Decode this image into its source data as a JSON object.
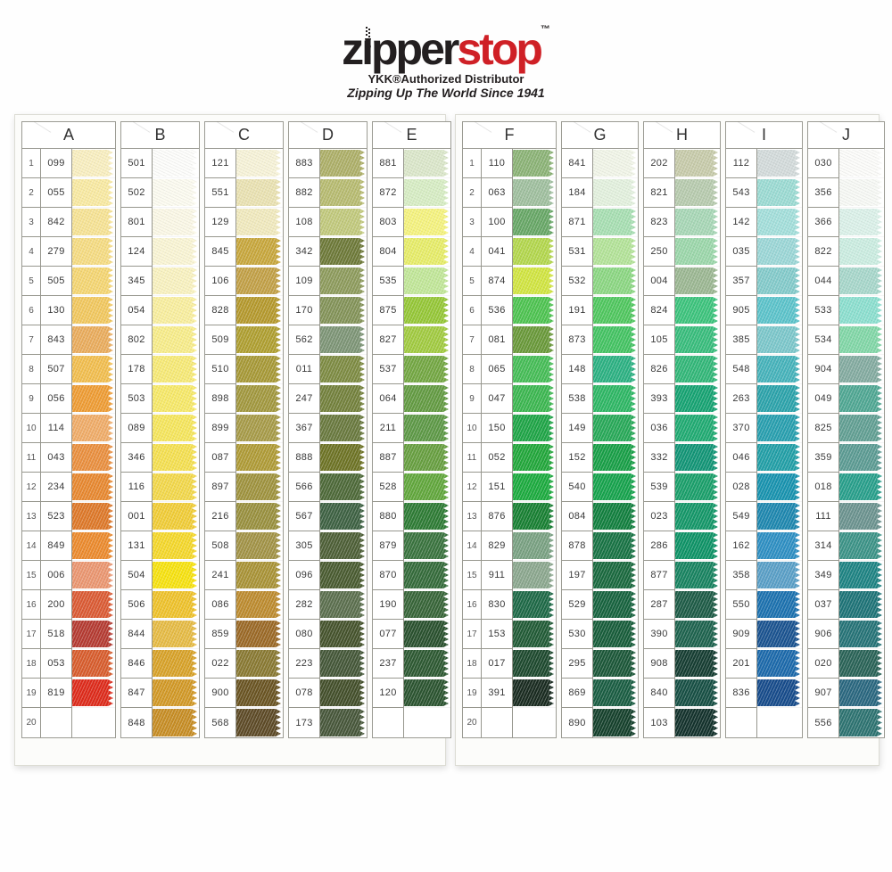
{
  "brand": {
    "logo_z": "z",
    "logo_i": "ı",
    "logo_pper": "pper",
    "logo_stop": "stop",
    "tm": "™",
    "subtitle": "YKK®Authorized Distributor",
    "tagline": "Zipping Up The World Since 1941",
    "red": "#cf2026",
    "black": "#231f20"
  },
  "rows": 20,
  "pages": [
    {
      "columns": [
        {
          "letter": "A",
          "show_row_numbers": true,
          "cells": [
            {
              "code": "099",
              "color": "#F9EFC0"
            },
            {
              "code": "055",
              "color": "#F9EAA2"
            },
            {
              "code": "842",
              "color": "#F7E394"
            },
            {
              "code": "279",
              "color": "#F6DC82"
            },
            {
              "code": "505",
              "color": "#F5D672"
            },
            {
              "code": "130",
              "color": "#F2C85E"
            },
            {
              "code": "843",
              "color": "#EAAC5C"
            },
            {
              "code": "507",
              "color": "#F2BE4E"
            },
            {
              "code": "056",
              "color": "#EF9C33"
            },
            {
              "code": "114",
              "color": "#F0AC68"
            },
            {
              "code": "043",
              "color": "#EA8F3E"
            },
            {
              "code": "234",
              "color": "#E8882F"
            },
            {
              "code": "523",
              "color": "#DE7828"
            },
            {
              "code": "849",
              "color": "#EC8A2C"
            },
            {
              "code": "006",
              "color": "#EB9670"
            },
            {
              "code": "200",
              "color": "#DB5A33"
            },
            {
              "code": "518",
              "color": "#B53A31"
            },
            {
              "code": "053",
              "color": "#D85C2C"
            },
            {
              "code": "819",
              "color": "#DE2A1A"
            },
            {
              "code": "",
              "color": ""
            }
          ]
        },
        {
          "letter": "B",
          "show_row_numbers": false,
          "cells": [
            {
              "code": "501",
              "color": "#FDFDFB"
            },
            {
              "code": "502",
              "color": "#FCFBF0"
            },
            {
              "code": "801",
              "color": "#FBF8E6"
            },
            {
              "code": "124",
              "color": "#FAF5D4"
            },
            {
              "code": "345",
              "color": "#F9F2C0"
            },
            {
              "code": "054",
              "color": "#F9EF9E"
            },
            {
              "code": "802",
              "color": "#F8ED8A"
            },
            {
              "code": "178",
              "color": "#F7EA76"
            },
            {
              "code": "503",
              "color": "#F7E968"
            },
            {
              "code": "089",
              "color": "#F6E65C"
            },
            {
              "code": "346",
              "color": "#F5E050"
            },
            {
              "code": "116",
              "color": "#F3D84A"
            },
            {
              "code": "001",
              "color": "#F1CD36"
            },
            {
              "code": "131",
              "color": "#F5D82A"
            },
            {
              "code": "504",
              "color": "#F7E20E"
            },
            {
              "code": "506",
              "color": "#EFC22A"
            },
            {
              "code": "844",
              "color": "#E6BB44"
            },
            {
              "code": "846",
              "color": "#D8A228"
            },
            {
              "code": "847",
              "color": "#D29926"
            },
            {
              "code": "848",
              "color": "#C78D24"
            }
          ]
        },
        {
          "letter": "C",
          "show_row_numbers": false,
          "cells": [
            {
              "code": "121",
              "color": "#F7F3D8"
            },
            {
              "code": "551",
              "color": "#EAE2B2"
            },
            {
              "code": "129",
              "color": "#F1EABE"
            },
            {
              "code": "845",
              "color": "#C8A73C"
            },
            {
              "code": "106",
              "color": "#C2A046"
            },
            {
              "code": "828",
              "color": "#B5992C"
            },
            {
              "code": "509",
              "color": "#AF9F30"
            },
            {
              "code": "510",
              "color": "#A79936"
            },
            {
              "code": "898",
              "color": "#A2983E"
            },
            {
              "code": "899",
              "color": "#A79B48"
            },
            {
              "code": "087",
              "color": "#AF9B36"
            },
            {
              "code": "897",
              "color": "#9F933E"
            },
            {
              "code": "216",
              "color": "#99903E"
            },
            {
              "code": "508",
              "color": "#A29346"
            },
            {
              "code": "241",
              "color": "#A99336"
            },
            {
              "code": "086",
              "color": "#BD8B2E"
            },
            {
              "code": "859",
              "color": "#9B6926"
            },
            {
              "code": "022",
              "color": "#897932"
            },
            {
              "code": "900",
              "color": "#6A5422"
            },
            {
              "code": "568",
              "color": "#5D4A26"
            }
          ]
        },
        {
          "letter": "D",
          "show_row_numbers": false,
          "cells": [
            {
              "code": "883",
              "color": "#ADAF68"
            },
            {
              "code": "882",
              "color": "#B7BB70"
            },
            {
              "code": "108",
              "color": "#C1C97C"
            },
            {
              "code": "342",
              "color": "#6D7938"
            },
            {
              "code": "109",
              "color": "#8D9B5C"
            },
            {
              "code": "170",
              "color": "#839358"
            },
            {
              "code": "562",
              "color": "#7D9576"
            },
            {
              "code": "011",
              "color": "#7D8B42"
            },
            {
              "code": "247",
              "color": "#73813C"
            },
            {
              "code": "367",
              "color": "#69793E"
            },
            {
              "code": "888",
              "color": "#6D7324"
            },
            {
              "code": "566",
              "color": "#4D6938"
            },
            {
              "code": "567",
              "color": "#3D6142"
            },
            {
              "code": "305",
              "color": "#4D5F36"
            },
            {
              "code": "096",
              "color": "#495B30"
            },
            {
              "code": "282",
              "color": "#5B6F4E"
            },
            {
              "code": "080",
              "color": "#45532C"
            },
            {
              "code": "223",
              "color": "#445738"
            },
            {
              "code": "078",
              "color": "#434F2A"
            },
            {
              "code": "173",
              "color": "#47573A"
            }
          ]
        },
        {
          "letter": "E",
          "show_row_numbers": false,
          "cells": [
            {
              "code": "881",
              "color": "#DBE7CA"
            },
            {
              "code": "872",
              "color": "#D7EDC4"
            },
            {
              "code": "803",
              "color": "#F5F37E"
            },
            {
              "code": "804",
              "color": "#E7ED68"
            },
            {
              "code": "535",
              "color": "#C1E798"
            },
            {
              "code": "875",
              "color": "#95C736"
            },
            {
              "code": "827",
              "color": "#A1CB40"
            },
            {
              "code": "537",
              "color": "#73A742"
            },
            {
              "code": "064",
              "color": "#639B42"
            },
            {
              "code": "211",
              "color": "#5D9946"
            },
            {
              "code": "887",
              "color": "#679F40"
            },
            {
              "code": "528",
              "color": "#61A73C"
            },
            {
              "code": "880",
              "color": "#2D7B34"
            },
            {
              "code": "879",
              "color": "#39733E"
            },
            {
              "code": "870",
              "color": "#346B3A"
            },
            {
              "code": "190",
              "color": "#376538"
            },
            {
              "code": "077",
              "color": "#29512E"
            },
            {
              "code": "237",
              "color": "#2D5932"
            },
            {
              "code": "120",
              "color": "#2B5430"
            },
            {
              "code": "",
              "color": ""
            }
          ]
        }
      ]
    },
    {
      "columns": [
        {
          "letter": "F",
          "show_row_numbers": true,
          "cells": [
            {
              "code": "110",
              "color": "#8BB376"
            },
            {
              "code": "063",
              "color": "#9FBF9E"
            },
            {
              "code": "100",
              "color": "#67A766"
            },
            {
              "code": "041",
              "color": "#B3D74C"
            },
            {
              "code": "874",
              "color": "#D1E540"
            },
            {
              "code": "536",
              "color": "#4DC350"
            },
            {
              "code": "081",
              "color": "#699939"
            },
            {
              "code": "065",
              "color": "#45BD56"
            },
            {
              "code": "047",
              "color": "#3BB750"
            },
            {
              "code": "150",
              "color": "#1EA546"
            },
            {
              "code": "052",
              "color": "#21A73A"
            },
            {
              "code": "151",
              "color": "#1BAB3E"
            },
            {
              "code": "876",
              "color": "#178032"
            },
            {
              "code": "829",
              "color": "#79A182"
            },
            {
              "code": "911",
              "color": "#8BA78E"
            },
            {
              "code": "830",
              "color": "#1D6946"
            },
            {
              "code": "153",
              "color": "#215B36"
            },
            {
              "code": "017",
              "color": "#1D492E"
            },
            {
              "code": "391",
              "color": "#192B20"
            },
            {
              "code": "",
              "color": ""
            }
          ]
        },
        {
          "letter": "G",
          "show_row_numbers": false,
          "cells": [
            {
              "code": "841",
              "color": "#F1F5E8"
            },
            {
              "code": "184",
              "color": "#E3F1DE"
            },
            {
              "code": "871",
              "color": "#A7DFB2"
            },
            {
              "code": "531",
              "color": "#B3E398"
            },
            {
              "code": "532",
              "color": "#8BD782"
            },
            {
              "code": "191",
              "color": "#4FC75E"
            },
            {
              "code": "873",
              "color": "#43C362"
            },
            {
              "code": "148",
              "color": "#2BB182"
            },
            {
              "code": "538",
              "color": "#2DB764"
            },
            {
              "code": "149",
              "color": "#27A958"
            },
            {
              "code": "152",
              "color": "#179F46"
            },
            {
              "code": "540",
              "color": "#15A34C"
            },
            {
              "code": "084",
              "color": "#117F3E"
            },
            {
              "code": "878",
              "color": "#177344"
            },
            {
              "code": "197",
              "color": "#19693E"
            },
            {
              "code": "529",
              "color": "#16633E"
            },
            {
              "code": "530",
              "color": "#175D3A"
            },
            {
              "code": "295",
              "color": "#1B5738"
            },
            {
              "code": "869",
              "color": "#195D42"
            },
            {
              "code": "890",
              "color": "#15412C"
            }
          ]
        },
        {
          "letter": "H",
          "show_row_numbers": false,
          "cells": [
            {
              "code": "202",
              "color": "#C7CBAA"
            },
            {
              "code": "821",
              "color": "#B7CBAE"
            },
            {
              "code": "823",
              "color": "#A7D7B6"
            },
            {
              "code": "250",
              "color": "#9BD7AA"
            },
            {
              "code": "004",
              "color": "#9BB792"
            },
            {
              "code": "824",
              "color": "#3BC37C"
            },
            {
              "code": "105",
              "color": "#37BD7C"
            },
            {
              "code": "826",
              "color": "#31B778"
            },
            {
              "code": "393",
              "color": "#15A372"
            },
            {
              "code": "036",
              "color": "#1FAB72"
            },
            {
              "code": "332",
              "color": "#119576"
            },
            {
              "code": "539",
              "color": "#199F6A"
            },
            {
              "code": "023",
              "color": "#139768"
            },
            {
              "code": "286",
              "color": "#0D9366"
            },
            {
              "code": "877",
              "color": "#178360"
            },
            {
              "code": "287",
              "color": "#1D5B46"
            },
            {
              "code": "390",
              "color": "#1D634E"
            },
            {
              "code": "908",
              "color": "#153D32"
            },
            {
              "code": "840",
              "color": "#164F44"
            },
            {
              "code": "103",
              "color": "#13322C"
            }
          ]
        },
        {
          "letter": "I",
          "show_row_numbers": false,
          "cells": [
            {
              "code": "112",
              "color": "#D3DBDB"
            },
            {
              "code": "543",
              "color": "#9BDBD3"
            },
            {
              "code": "142",
              "color": "#A3DFDB"
            },
            {
              "code": "035",
              "color": "#9BD7D7"
            },
            {
              "code": "357",
              "color": "#83CBCB"
            },
            {
              "code": "905",
              "color": "#5BC3CB"
            },
            {
              "code": "385",
              "color": "#7BC7CB"
            },
            {
              "code": "548",
              "color": "#45B3BB"
            },
            {
              "code": "263",
              "color": "#2BA3AB"
            },
            {
              "code": "370",
              "color": "#279FAF"
            },
            {
              "code": "046",
              "color": "#219FA7"
            },
            {
              "code": "028",
              "color": "#1793AF"
            },
            {
              "code": "549",
              "color": "#1D87AF"
            },
            {
              "code": "162",
              "color": "#2D8FC3"
            },
            {
              "code": "358",
              "color": "#599FC7"
            },
            {
              "code": "550",
              "color": "#1B71AF"
            },
            {
              "code": "909",
              "color": "#1A5390"
            },
            {
              "code": "201",
              "color": "#1B69AB"
            },
            {
              "code": "836",
              "color": "#164B8B"
            },
            {
              "code": "",
              "color": ""
            }
          ]
        },
        {
          "letter": "J",
          "show_row_numbers": false,
          "cells": [
            {
              "code": "030",
              "color": "#FCFCFA"
            },
            {
              "code": "356",
              "color": "#F7F9F5"
            },
            {
              "code": "366",
              "color": "#DBF1E9"
            },
            {
              "code": "822",
              "color": "#CBEDE1"
            },
            {
              "code": "044",
              "color": "#A7D7CB"
            },
            {
              "code": "533",
              "color": "#8BDFCF"
            },
            {
              "code": "534",
              "color": "#81D7A7"
            },
            {
              "code": "904",
              "color": "#83ABA0"
            },
            {
              "code": "049",
              "color": "#4FA793"
            },
            {
              "code": "825",
              "color": "#619F93"
            },
            {
              "code": "359",
              "color": "#5B9B93"
            },
            {
              "code": "018",
              "color": "#279F8B"
            },
            {
              "code": "111",
              "color": "#6B938F"
            },
            {
              "code": "314",
              "color": "#3B9387"
            },
            {
              "code": "349",
              "color": "#1D8383"
            },
            {
              "code": "037",
              "color": "#1D7377"
            },
            {
              "code": "906",
              "color": "#257377"
            },
            {
              "code": "020",
              "color": "#296357"
            },
            {
              "code": "907",
              "color": "#29677F"
            },
            {
              "code": "556",
              "color": "#2D7371"
            }
          ]
        }
      ]
    }
  ]
}
